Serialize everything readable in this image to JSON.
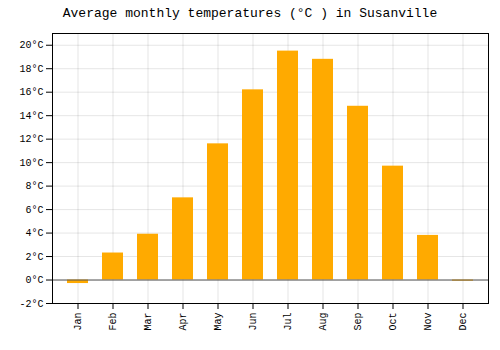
{
  "chart_data": {
    "type": "bar",
    "title": "Average monthly temperatures (°C ) in Susanville",
    "categories": [
      "Jan",
      "Feb",
      "Mar",
      "Apr",
      "May",
      "Jun",
      "Jul",
      "Aug",
      "Sep",
      "Oct",
      "Nov",
      "Dec"
    ],
    "values": [
      -0.3,
      2.3,
      3.9,
      7.0,
      11.6,
      16.2,
      19.5,
      18.8,
      14.8,
      9.7,
      3.8,
      -0.1
    ],
    "color": "#FFAA00",
    "ylim": [
      -2,
      21
    ],
    "yticks": [
      {
        "value": -2,
        "label": "-2°C"
      },
      {
        "value": 0,
        "label": "0°C"
      },
      {
        "value": 2,
        "label": "2°C"
      },
      {
        "value": 4,
        "label": "4°C"
      },
      {
        "value": 6,
        "label": "6°C"
      },
      {
        "value": 8,
        "label": "8°C"
      },
      {
        "value": 10,
        "label": "10°C"
      },
      {
        "value": 12,
        "label": "12°C"
      },
      {
        "value": 14,
        "label": "14°C"
      },
      {
        "value": 16,
        "label": "16°C"
      },
      {
        "value": 18,
        "label": "18°C"
      },
      {
        "value": 20,
        "label": "20°C"
      }
    ],
    "grid": true
  }
}
